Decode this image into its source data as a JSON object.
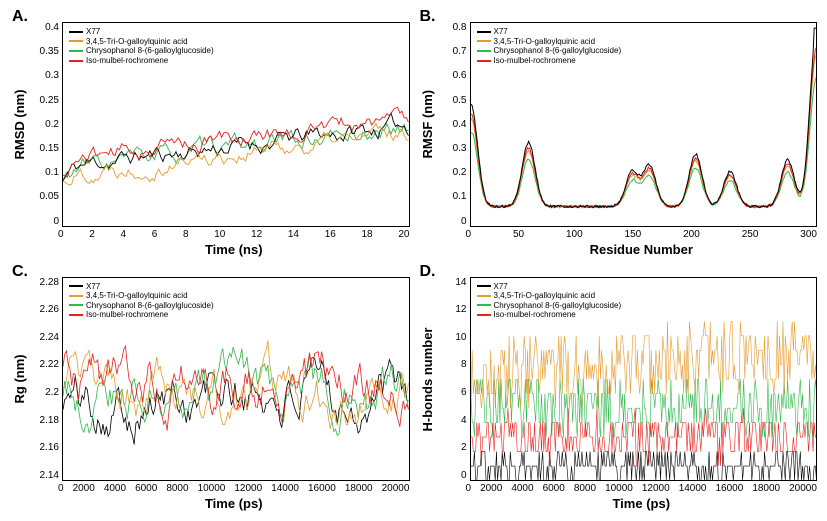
{
  "series_colors": {
    "x77": "#000000",
    "tri": "#e69b2c",
    "chry": "#2fb84d",
    "iso": "#e8221f"
  },
  "legend_labels": {
    "x77": "X77",
    "tri": "3,4,5-Tri-O-galloylquinic acid",
    "chry": "Chrysophanol 8-(6-galloylglucoside)",
    "iso": "Iso-mulbel-rochromene"
  },
  "panels": {
    "A": {
      "letter": "A.",
      "xlabel": "Time (ns)",
      "ylabel": "RMSD (nm)",
      "xlim": [
        0,
        20
      ],
      "ylim": [
        0,
        0.4
      ],
      "xticks": [
        0,
        2,
        4,
        6,
        8,
        10,
        12,
        14,
        16,
        18,
        20
      ],
      "yticks": [
        0,
        0.05,
        0.1,
        0.15,
        0.2,
        0.25,
        0.3,
        0.35,
        0.4
      ],
      "legend_pos": "top-left",
      "stroke_width": 0.9
    },
    "B": {
      "letter": "B.",
      "xlabel": "Residue Number",
      "ylabel": "RMSF (nm)",
      "xlim": [
        0,
        300
      ],
      "ylim": [
        0,
        0.8
      ],
      "xticks": [
        0,
        50,
        100,
        150,
        200,
        250,
        300
      ],
      "yticks": [
        0,
        0.1,
        0.2,
        0.3,
        0.4,
        0.5,
        0.6,
        0.7,
        0.8
      ],
      "legend_pos": "top-left",
      "stroke_width": 1.0
    },
    "C": {
      "letter": "C.",
      "xlabel": "Time (ps)",
      "ylabel": "Rg (nm)",
      "xlim": [
        0,
        20000
      ],
      "ylim": [
        2.14,
        2.28
      ],
      "xticks": [
        0,
        2000,
        4000,
        6000,
        8000,
        10000,
        12000,
        14000,
        16000,
        18000,
        20000
      ],
      "yticks": [
        2.14,
        2.16,
        2.18,
        2.2,
        2.22,
        2.24,
        2.26,
        2.28
      ],
      "legend_pos": "top-left",
      "stroke_width": 0.8
    },
    "D": {
      "letter": "D.",
      "xlabel": "Time (ps)",
      "ylabel": "H-bonds number",
      "xlim": [
        0,
        20000
      ],
      "ylim": [
        0,
        14
      ],
      "xticks": [
        0,
        2000,
        4000,
        6000,
        8000,
        10000,
        12000,
        14000,
        16000,
        18000,
        20000
      ],
      "yticks": [
        0,
        2,
        4,
        6,
        8,
        10,
        12,
        14
      ],
      "legend_pos": "top-left-inset",
      "stroke_width": 0.6
    }
  },
  "typography": {
    "axis_label_fontsize": 13,
    "axis_label_fontweight": "bold",
    "tick_fontsize": 10,
    "legend_fontsize": 8,
    "panel_letter_fontsize": 16
  },
  "background_color": "#ffffff",
  "border_color": "#000000",
  "trace_params": {
    "A": {
      "n": 160,
      "base": 0.12,
      "growth": 0.004,
      "noise": 0.025
    },
    "B": {
      "n": 300
    },
    "C": {
      "n": 200,
      "base": 2.2,
      "noise": 0.022
    },
    "D": {
      "n": 300
    }
  }
}
